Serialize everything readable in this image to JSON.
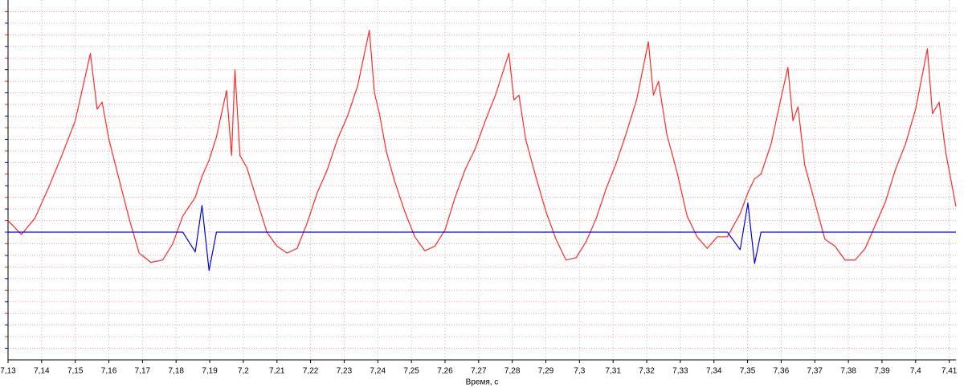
{
  "chart_data": {
    "type": "line",
    "xlabel": "Время, с",
    "x": [
      7.13,
      7.134,
      7.138,
      7.142,
      7.146,
      7.15,
      7.1545,
      7.1565,
      7.158,
      7.16,
      7.163,
      7.166,
      7.169,
      7.1725,
      7.176,
      7.179,
      7.182,
      7.1857,
      7.1877,
      7.1898,
      7.192,
      7.195,
      7.1965,
      7.1975,
      7.199,
      7.201,
      7.204,
      7.207,
      7.21,
      7.213,
      7.216,
      7.219,
      7.222,
      7.225,
      7.228,
      7.231,
      7.234,
      7.2375,
      7.239,
      7.2405,
      7.2425,
      7.245,
      7.248,
      7.251,
      7.254,
      7.257,
      7.26,
      7.263,
      7.266,
      7.269,
      7.272,
      7.275,
      7.279,
      7.2805,
      7.282,
      7.284,
      7.287,
      7.29,
      7.293,
      7.296,
      7.299,
      7.302,
      7.305,
      7.308,
      7.311,
      7.314,
      7.317,
      7.3205,
      7.322,
      7.3235,
      7.326,
      7.329,
      7.332,
      7.335,
      7.338,
      7.341,
      7.344,
      7.3478,
      7.3501,
      7.3521,
      7.354,
      7.357,
      7.36,
      7.362,
      7.3635,
      7.365,
      7.367,
      7.37,
      7.373,
      7.376,
      7.379,
      7.382,
      7.385,
      7.388,
      7.391,
      7.394,
      7.397,
      7.4,
      7.4035,
      7.405,
      7.407,
      7.409,
      7.412
    ],
    "series": [
      {
        "color": "#ff2a2a",
        "values": [
          0.5,
          -0.1,
          0.6,
          1.9,
          3.3,
          4.8,
          7.7,
          5.3,
          5.6,
          4.0,
          2.3,
          0.6,
          -0.9,
          -1.3,
          -1.2,
          -0.5,
          0.7,
          1.5,
          2.4,
          3.1,
          4.1,
          6.1,
          3.3,
          7.0,
          3.3,
          2.8,
          1.4,
          0.0,
          -0.6,
          -0.9,
          -0.7,
          0.4,
          1.7,
          2.7,
          4.0,
          5.0,
          6.3,
          8.7,
          6.0,
          5.1,
          3.5,
          2.2,
          0.9,
          -0.2,
          -0.8,
          -0.6,
          0.1,
          1.5,
          2.7,
          3.6,
          4.8,
          5.9,
          7.7,
          5.7,
          5.9,
          4.0,
          2.4,
          0.9,
          -0.3,
          -1.2,
          -1.1,
          -0.4,
          0.6,
          1.9,
          3.0,
          4.3,
          5.7,
          8.2,
          5.9,
          6.5,
          4.2,
          2.6,
          0.7,
          -0.2,
          -0.7,
          -0.2,
          -0.2,
          0.8,
          1.7,
          2.3,
          2.5,
          3.8,
          5.8,
          7.1,
          4.8,
          5.4,
          2.9,
          1.3,
          -0.3,
          -0.6,
          -1.2,
          -1.2,
          -0.7,
          0.3,
          1.3,
          2.7,
          3.8,
          5.3,
          7.9,
          5.1,
          5.6,
          3.4,
          1.1
        ]
      },
      {
        "color": "#0000e6",
        "values": [
          0,
          0,
          0,
          0,
          0,
          0,
          0,
          0,
          0,
          0,
          0,
          0,
          0,
          0,
          0,
          0,
          0,
          -0.85,
          1.15,
          -1.65,
          0,
          0,
          0,
          0,
          0,
          0,
          0,
          0,
          0,
          0,
          0,
          0,
          0,
          0,
          0,
          0,
          0,
          0,
          0,
          0,
          0,
          0,
          0,
          0,
          0,
          0,
          0,
          0,
          0,
          0,
          0,
          0,
          0,
          0,
          0,
          0,
          0,
          0,
          0,
          0,
          0,
          0,
          0,
          0,
          0,
          0,
          0,
          0,
          0,
          0,
          0,
          0,
          0,
          0,
          0,
          0,
          0,
          -0.75,
          1.25,
          -1.35,
          0,
          0,
          0,
          0,
          0,
          0,
          0,
          0,
          0,
          0,
          0,
          0,
          0,
          0,
          0,
          0,
          0,
          0,
          0,
          0,
          0,
          0,
          0
        ]
      }
    ],
    "xlim": [
      7.13,
      7.412
    ],
    "ylim": [
      -5.5,
      10
    ],
    "xticks": [
      {
        "value": 7.13,
        "label": "7,13"
      },
      {
        "value": 7.14,
        "label": "7,14"
      },
      {
        "value": 7.15,
        "label": "7,15"
      },
      {
        "value": 7.16,
        "label": "7,16"
      },
      {
        "value": 7.17,
        "label": "7,17"
      },
      {
        "value": 7.18,
        "label": "7,18"
      },
      {
        "value": 7.19,
        "label": "7,19"
      },
      {
        "value": 7.2,
        "label": "7,2"
      },
      {
        "value": 7.21,
        "label": "7,21"
      },
      {
        "value": 7.22,
        "label": "7,22"
      },
      {
        "value": 7.23,
        "label": "7,23"
      },
      {
        "value": 7.24,
        "label": "7,24"
      },
      {
        "value": 7.25,
        "label": "7,25"
      },
      {
        "value": 7.26,
        "label": "7,26"
      },
      {
        "value": 7.27,
        "label": "7,27"
      },
      {
        "value": 7.28,
        "label": "7,28"
      },
      {
        "value": 7.29,
        "label": "7,29"
      },
      {
        "value": 7.3,
        "label": "7,3"
      },
      {
        "value": 7.31,
        "label": "7,31"
      },
      {
        "value": 7.32,
        "label": "7,32"
      },
      {
        "value": 7.33,
        "label": "7,33"
      },
      {
        "value": 7.34,
        "label": "7,34"
      },
      {
        "value": 7.35,
        "label": "7,35"
      },
      {
        "value": 7.36,
        "label": "7,36"
      },
      {
        "value": 7.37,
        "label": "7,37"
      },
      {
        "value": 7.38,
        "label": "7,38"
      },
      {
        "value": 7.39,
        "label": "7,39"
      },
      {
        "value": 7.4,
        "label": "7,4"
      },
      {
        "value": 7.41,
        "label": "7,41"
      }
    ],
    "yticks": [
      -5,
      -4.5,
      -4,
      -3.5,
      -3,
      -2.5,
      -2,
      -1.5,
      -1,
      -0.5,
      0,
      0.5,
      1,
      1.5,
      2,
      2.5,
      3,
      3.5,
      4,
      4.5,
      5,
      5.5,
      6,
      6.5,
      7,
      7.5,
      8,
      8.5,
      9,
      9.5
    ],
    "grid": true
  }
}
